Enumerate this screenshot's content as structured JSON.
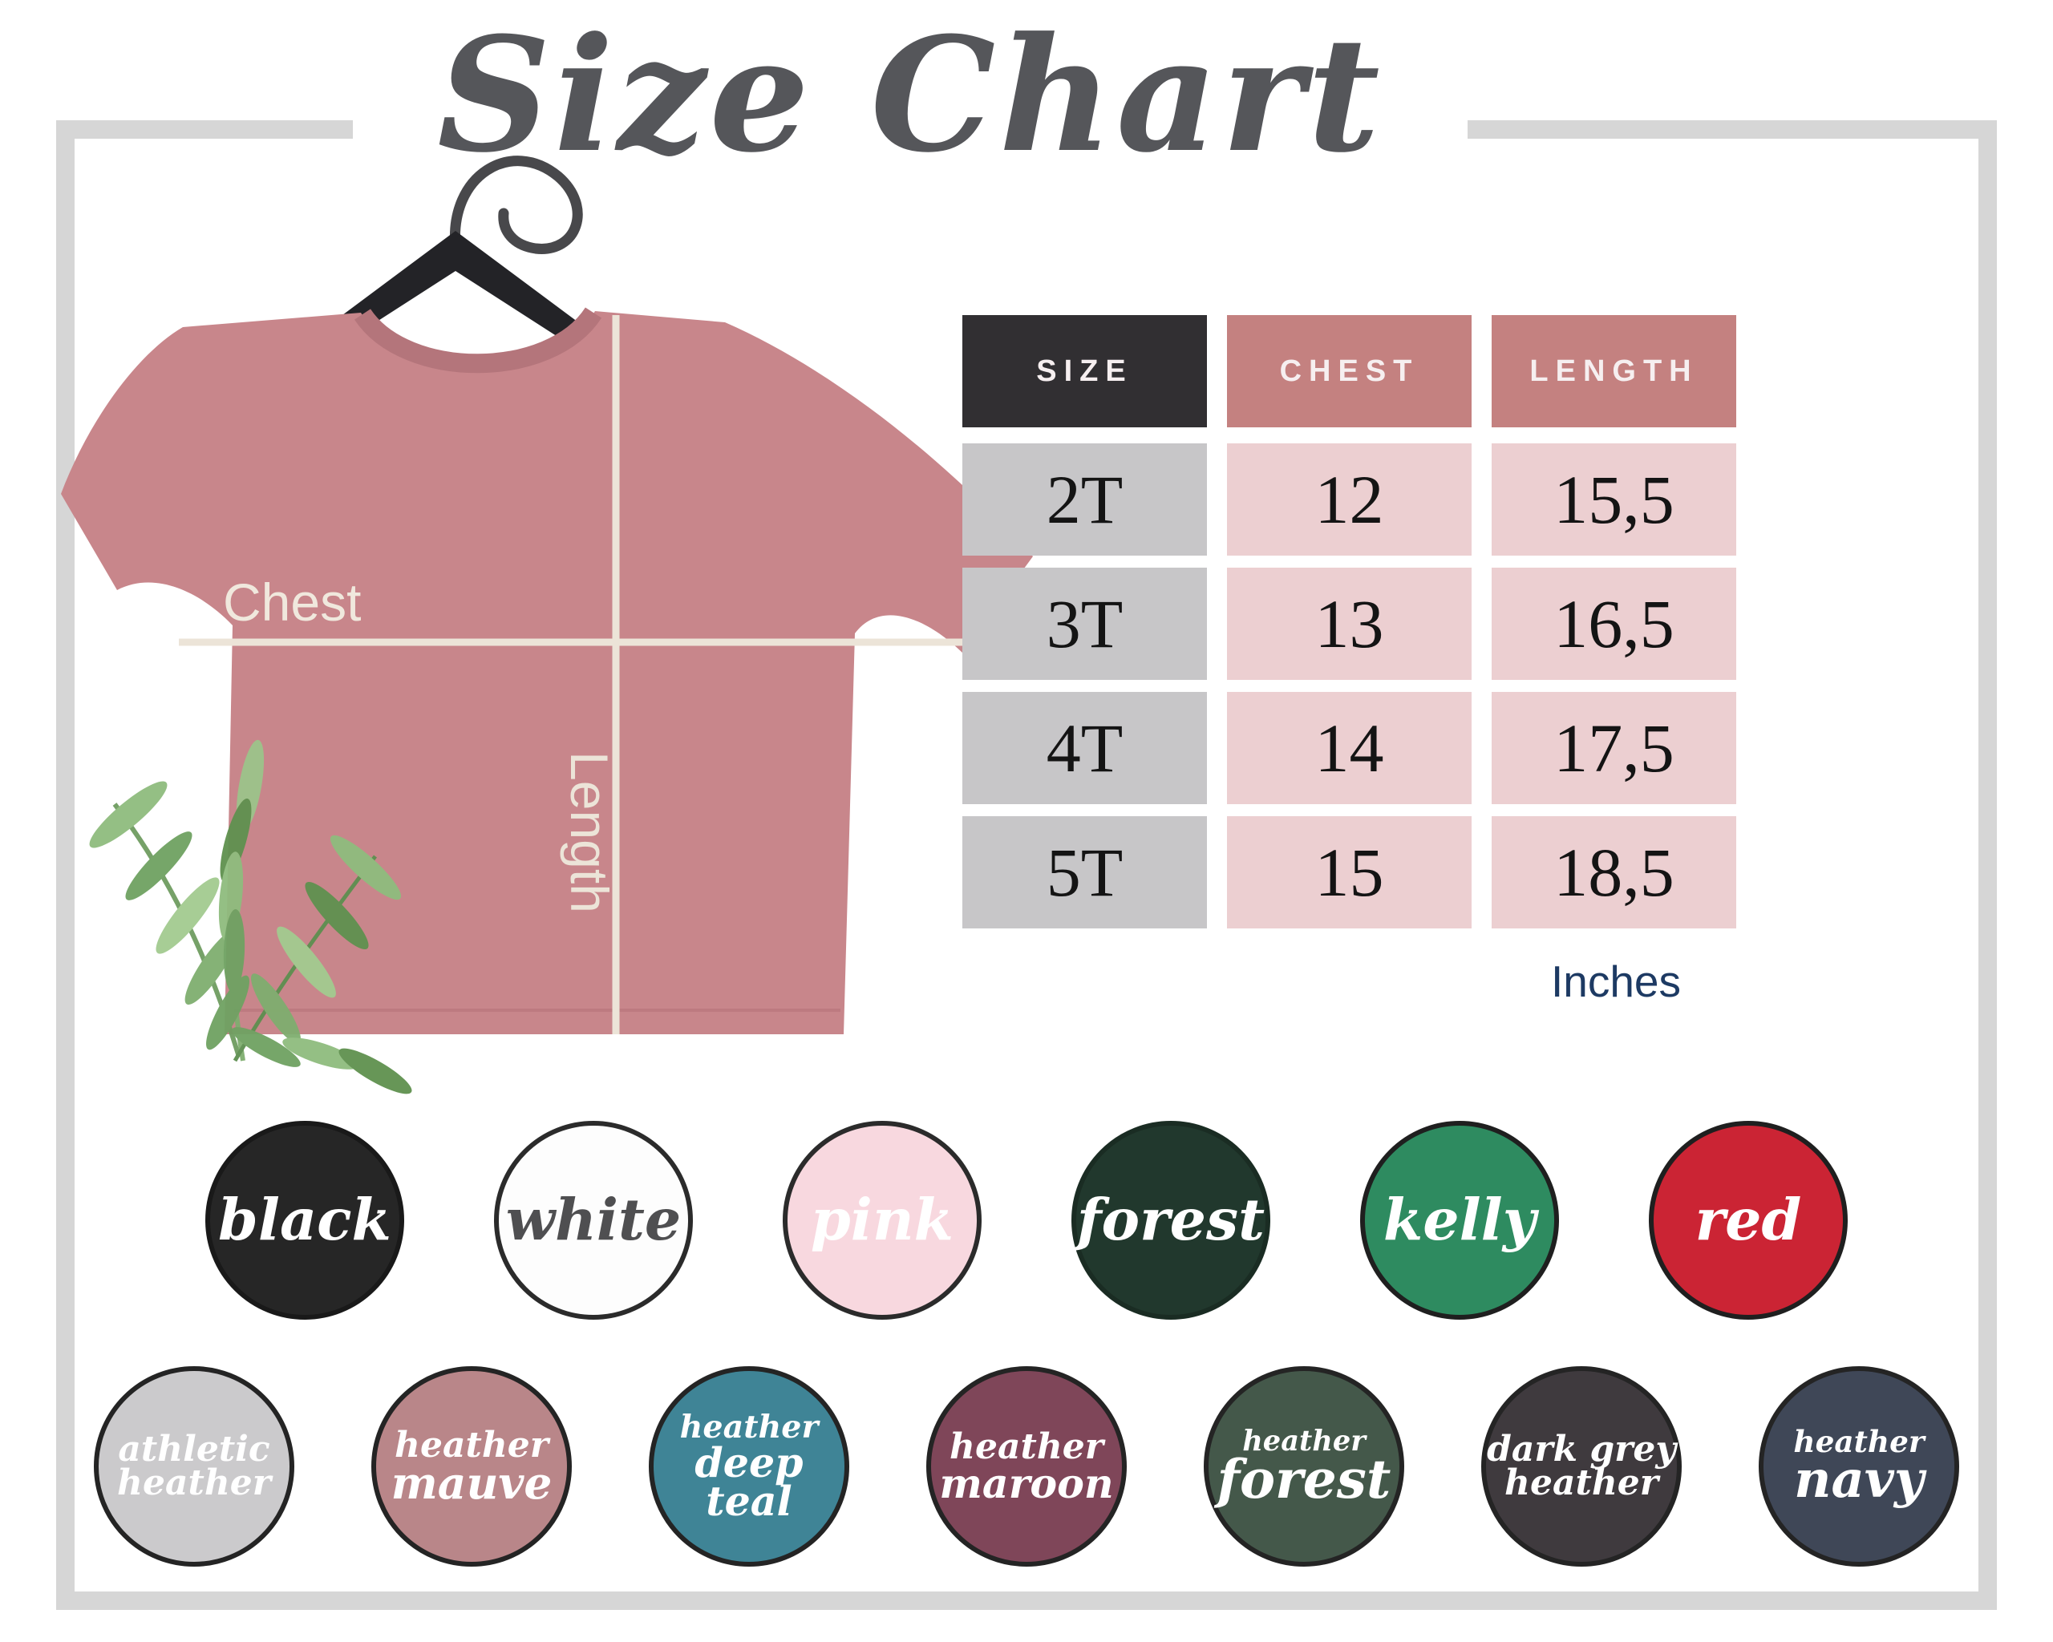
{
  "title": "Size Chart",
  "frame": {
    "color": "#d6d6d6"
  },
  "shirt": {
    "chest_label": "Chest",
    "length_label": "Length",
    "shirt_color": "#c8868b",
    "line_color": "#ece4d8",
    "hanger_color": "#232327"
  },
  "size_table": {
    "columns": [
      {
        "label": "SIZE",
        "bg": "#312f32"
      },
      {
        "label": "CHEST",
        "bg": "#c48180"
      },
      {
        "label": "LENGTH",
        "bg": "#c48180"
      }
    ],
    "rows": [
      {
        "size": "2T",
        "chest": "12",
        "length": "15,5"
      },
      {
        "size": "3T",
        "chest": "13",
        "length": "16,5"
      },
      {
        "size": "4T",
        "chest": "14",
        "length": "17,5"
      },
      {
        "size": "5T",
        "chest": "15",
        "length": "18,5"
      }
    ],
    "row_label_bg": "#c7c6c8",
    "row_value_bg": "#eccfd1",
    "units_label": "Inches",
    "units_color": "#1d3a63"
  },
  "swatches": {
    "row1": [
      {
        "name": "black",
        "fill": "#262626",
        "border": "#191919",
        "text_color": "#ffffff",
        "lines": [
          {
            "text": "black",
            "scale": 1.55
          }
        ]
      },
      {
        "name": "white",
        "fill": "#fdfdfd",
        "border": "#2b2b2b",
        "text_color": "#4f4f51",
        "lines": [
          {
            "text": "white",
            "scale": 1.55
          }
        ]
      },
      {
        "name": "pink",
        "fill": "#f8d8df",
        "border": "#2b2b2b",
        "text_color": "#ffffff",
        "lines": [
          {
            "text": "pink",
            "scale": 1.55
          }
        ]
      },
      {
        "name": "forest",
        "fill": "#21382d",
        "border": "#1a2c23",
        "text_color": "#ffffff",
        "lines": [
          {
            "text": "forest",
            "scale": 1.55
          }
        ]
      },
      {
        "name": "kelly",
        "fill": "#2e8b60",
        "border": "#1f1f1f",
        "text_color": "#ffffff",
        "lines": [
          {
            "text": "kelly",
            "scale": 1.55
          }
        ]
      },
      {
        "name": "red",
        "fill": "#cb2434",
        "border": "#1f1f1f",
        "text_color": "#ffffff",
        "lines": [
          {
            "text": "red",
            "scale": 1.55
          }
        ]
      }
    ],
    "row2": [
      {
        "name": "athletic heather",
        "fill": "#cbcacc",
        "border": "#242424",
        "text_color": "#ffffff",
        "lines": [
          {
            "text": "athletic",
            "scale": 1.0
          },
          {
            "text": "heather",
            "scale": 1.0
          }
        ]
      },
      {
        "name": "heather mauve",
        "fill": "#b98689",
        "border": "#242424",
        "text_color": "#ffffff",
        "lines": [
          {
            "text": "heather",
            "scale": 1.0
          },
          {
            "text": "mauve",
            "scale": 1.25
          }
        ]
      },
      {
        "name": "heather deep teal",
        "fill": "#3f8496",
        "border": "#242424",
        "text_color": "#ffffff",
        "lines": [
          {
            "text": "heather",
            "scale": 0.9
          },
          {
            "text": "deep teal",
            "scale": 1.15
          }
        ]
      },
      {
        "name": "heather maroon",
        "fill": "#7f4659",
        "border": "#242424",
        "text_color": "#ffffff",
        "lines": [
          {
            "text": "heather",
            "scale": 1.0
          },
          {
            "text": "maroon",
            "scale": 1.15
          }
        ]
      },
      {
        "name": "heather forest",
        "fill": "#44584a",
        "border": "#242424",
        "text_color": "#ffffff",
        "lines": [
          {
            "text": "heather",
            "scale": 0.8
          },
          {
            "text": "forest",
            "scale": 1.5
          }
        ]
      },
      {
        "name": "dark grey heather",
        "fill": "#3f3a3e",
        "border": "#242424",
        "text_color": "#ffffff",
        "lines": [
          {
            "text": "dark grey",
            "scale": 1.0
          },
          {
            "text": "heather",
            "scale": 1.0
          }
        ]
      },
      {
        "name": "heather navy",
        "fill": "#3f4757",
        "border": "#242424",
        "text_color": "#ffffff",
        "lines": [
          {
            "text": "heather",
            "scale": 0.85
          },
          {
            "text": "navy",
            "scale": 1.45
          }
        ]
      }
    ]
  },
  "chart_data": {
    "type": "table",
    "title": "Size Chart",
    "columns": [
      "SIZE",
      "CHEST",
      "LENGTH"
    ],
    "rows": [
      [
        "2T",
        "12",
        "15,5"
      ],
      [
        "3T",
        "13",
        "16,5"
      ],
      [
        "4T",
        "14",
        "17,5"
      ],
      [
        "5T",
        "15",
        "18,5"
      ]
    ],
    "units": "Inches",
    "measurement_guides": [
      "Chest",
      "Length"
    ],
    "available_colors": [
      "black",
      "white",
      "pink",
      "forest",
      "kelly",
      "red",
      "athletic heather",
      "heather mauve",
      "heather deep teal",
      "heather maroon",
      "heather forest",
      "dark grey heather",
      "heather navy"
    ]
  }
}
